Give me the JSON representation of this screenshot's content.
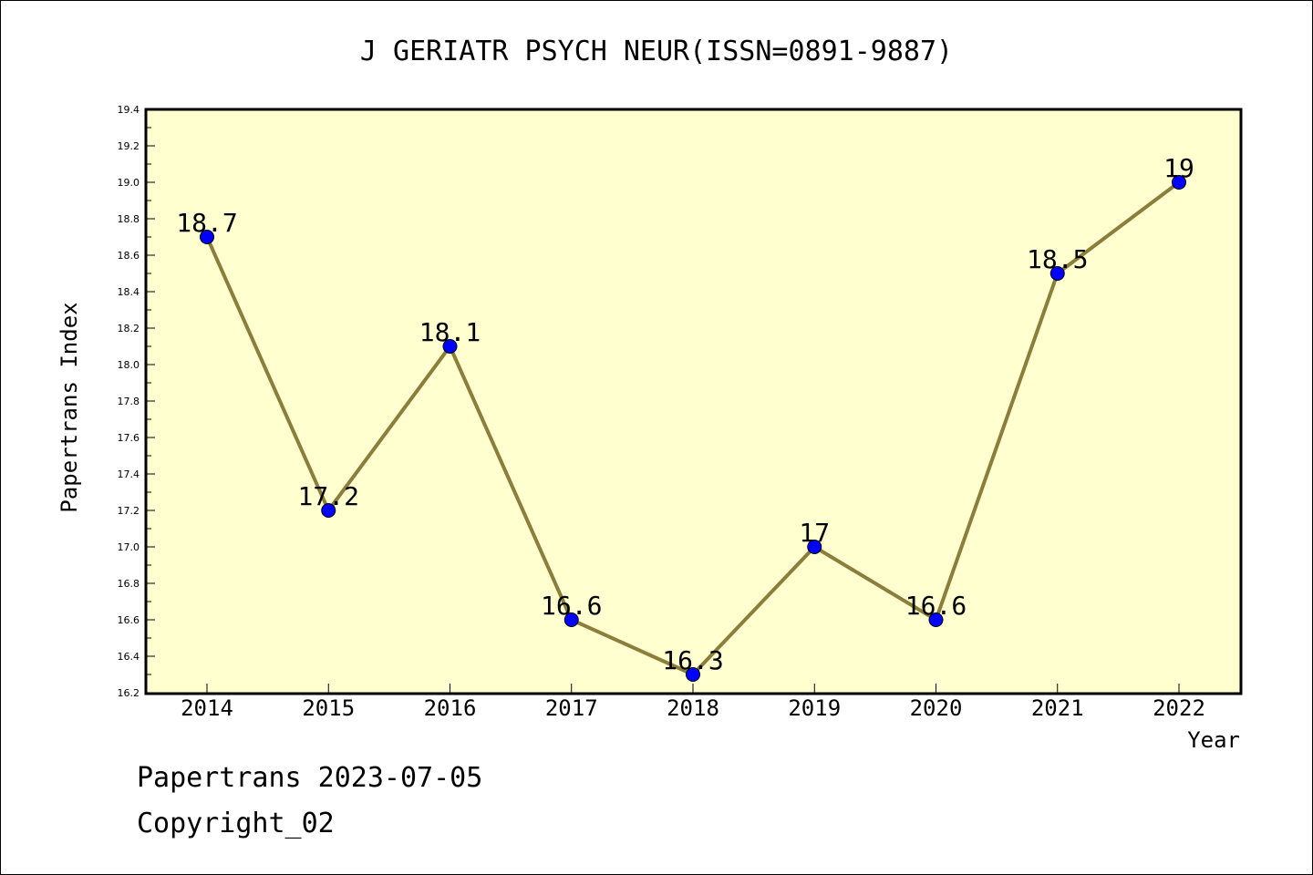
{
  "chart_data": {
    "type": "line",
    "title": "J GERIATR PSYCH NEUR(ISSN=0891-9887)",
    "xlabel": "Year",
    "ylabel": "Papertrans Index",
    "categories": [
      "2014",
      "2015",
      "2016",
      "2017",
      "2018",
      "2019",
      "2020",
      "2021",
      "2022"
    ],
    "series": [
      {
        "values": [
          18.7,
          17.2,
          18.1,
          16.6,
          16.3,
          17.0,
          16.6,
          18.5,
          19.0
        ],
        "data_labels": [
          "18.7",
          "17.2",
          "18.1",
          "16.6",
          "16.3",
          "17",
          "16.6",
          "18.5",
          "19"
        ]
      }
    ],
    "ylim": [
      16.2,
      19.4
    ],
    "ytick_labels": [
      "16.2",
      "16.4",
      "16.6",
      "16.8",
      "17.0",
      "17.2",
      "17.4",
      "17.6",
      "17.8",
      "18.0",
      "18.2",
      "18.4",
      "18.6",
      "18.8",
      "19.0",
      "19.2",
      "19.4"
    ],
    "grid": false,
    "colors": {
      "plot_background": "#FFFFD0",
      "line": "#8B7D3A",
      "marker": "#0000FF"
    }
  },
  "footer": {
    "line1": "Papertrans 2023-07-05",
    "line2": "Copyright_02"
  }
}
